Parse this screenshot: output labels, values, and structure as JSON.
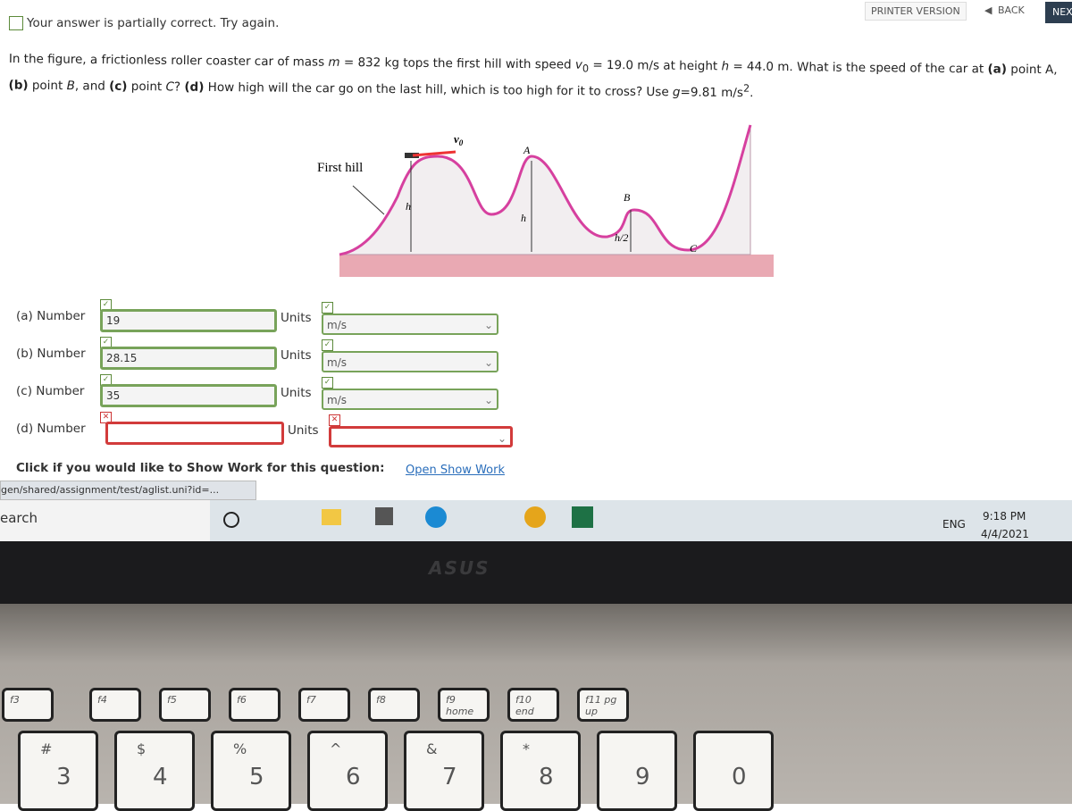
{
  "status": "Your answer is partially correct.  Try again.",
  "nav": {
    "printer": "PRINTER VERSION",
    "back": "BACK",
    "next": "NEX"
  },
  "question": [
    "In the figure, a frictionless roller coaster car of mass ",
    "m",
    " = 832 kg tops the first hill with speed ",
    "v",
    "0",
    " = 19.0 m/s at height ",
    "h",
    " = 44.0 m. What is the speed of the car at ",
    "(a)",
    " point A, ",
    "(b)",
    " point ",
    "B",
    ", and ",
    "(c)",
    " point ",
    "C",
    "? ",
    "(d)",
    " How high will the car go on the last hill, which is too high for it to cross? Use ",
    "g",
    "=9.81 m/s",
    "2",
    "."
  ],
  "figure": {
    "first_hill": "First hill",
    "v": "v",
    "v_sub": "0",
    "h_left": "h",
    "h_right": "h",
    "a": "A",
    "b": "B",
    "half": "h/2",
    "c": "C"
  },
  "answers": [
    {
      "label": "(a) Number",
      "value": "19",
      "units_label": "Units",
      "units": "m/s"
    },
    {
      "label": "(b) Number",
      "value": "28.15",
      "units_label": "Units",
      "units": "m/s"
    },
    {
      "label": "(c) Number",
      "value": "35",
      "units_label": "Units",
      "units": "m/s"
    },
    {
      "label": "(d) Number",
      "units_label": "Units"
    }
  ],
  "show_work": {
    "prompt": "Click if you would like to Show Work for this question:",
    "link": "Open Show Work"
  },
  "status_url": "gen/shared/assignment/test/aglist.uni?id=...",
  "taskbar": {
    "search": "earch",
    "lang": "ENG",
    "time": "9:18 PM",
    "date": "4/4/2021"
  },
  "laptop": {
    "brand": "ASUS",
    "fkeys": [
      "f3",
      "f4",
      "f5",
      "f6",
      "f7",
      "f8",
      "f9 home",
      "f10 end",
      "f11 pg up"
    ],
    "numkeys": [
      [
        "#",
        "3"
      ],
      [
        "$",
        "4"
      ],
      [
        "%",
        "5"
      ],
      [
        "^",
        "6"
      ],
      [
        "&",
        "7"
      ],
      [
        "*",
        "8"
      ],
      [
        "",
        "9"
      ],
      [
        "",
        "0"
      ]
    ]
  }
}
